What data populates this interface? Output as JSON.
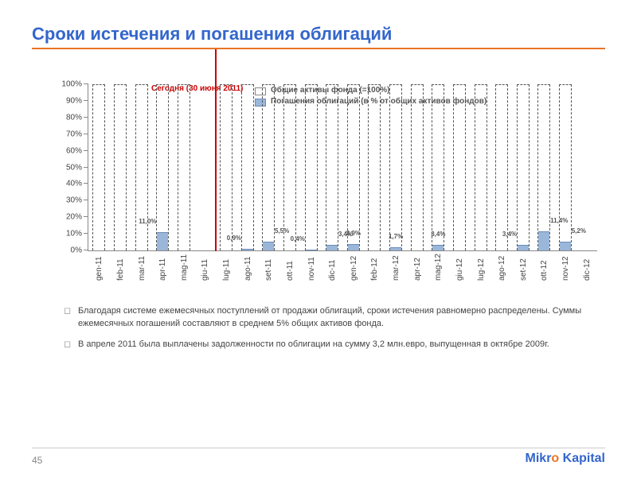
{
  "title": "Сроки истечения и погашения облигаций",
  "title_color": "#3366cc",
  "rule_color": "#e97424",
  "today_label": "Сегодня (30 июня 2011)",
  "today_color": "#cc0000",
  "legend": {
    "series1": {
      "label": "Общие активы фонда (=100%)",
      "color": "#ffffff",
      "border": "#888888"
    },
    "series2": {
      "label": "Погашения облигаций (в % от общих активов фондов)",
      "color": "#9ab7d9",
      "border": "#6a8db8"
    }
  },
  "chart": {
    "type": "bar",
    "ylim": [
      0,
      100
    ],
    "ytick_step": 10,
    "ylabels": [
      "0%",
      "10%",
      "20%",
      "30%",
      "40%",
      "50%",
      "60%",
      "70%",
      "80%",
      "90%",
      "100%"
    ],
    "bar_outline_dash": "dashed",
    "bar_fill_color": "#9ab7d9",
    "bar_fill_border": "#6a8db8",
    "background": "#ffffff",
    "grid_color": "#cccccc",
    "today_after_index": 5,
    "categories": [
      {
        "label": "gen-11",
        "value": null
      },
      {
        "label": "feb-11",
        "value": null
      },
      {
        "label": "mar-11",
        "value": null
      },
      {
        "label": "apr-11",
        "value": 11.0,
        "text": "11,0%",
        "lbl_side": "left"
      },
      {
        "label": "mag-11",
        "value": null
      },
      {
        "label": "giu-11",
        "value": null,
        "no_outline": true
      },
      {
        "label": "lug-11",
        "value": null
      },
      {
        "label": "ago-11",
        "value": 0.9,
        "text": "0,9%",
        "lbl_side": "left"
      },
      {
        "label": "set-11",
        "value": 5.5,
        "text": "5,5%",
        "lbl_side": "right"
      },
      {
        "label": "ott-11",
        "value": null
      },
      {
        "label": "nov-11",
        "value": 0.4,
        "text": "0,4%",
        "lbl_side": "left"
      },
      {
        "label": "dic-11",
        "value": 3.4,
        "text": "3,4%",
        "lbl_side": "right"
      },
      {
        "label": "gen-12",
        "value": 3.9,
        "text": "3,9%",
        "lbl_side": "center"
      },
      {
        "label": "feb-12",
        "value": null
      },
      {
        "label": "mar-12",
        "value": 1.7,
        "text": "1,7%",
        "lbl_side": "center"
      },
      {
        "label": "apr-12",
        "value": null
      },
      {
        "label": "mag-12",
        "value": 3.4,
        "text": "3,4%",
        "lbl_side": "center"
      },
      {
        "label": "giu-12",
        "value": null
      },
      {
        "label": "lug-12",
        "value": null
      },
      {
        "label": "ago-12",
        "value": null
      },
      {
        "label": "set-12",
        "value": 3.4,
        "text": "3,4%",
        "lbl_side": "left"
      },
      {
        "label": "ott-12",
        "value": 11.4,
        "text": "11,4%",
        "lbl_side": "right"
      },
      {
        "label": "nov-12",
        "value": 5.2,
        "text": "5,2%",
        "lbl_side": "right"
      },
      {
        "label": "dic-12",
        "value": null,
        "no_outline": true
      }
    ]
  },
  "bullets": [
    "Благодаря системе ежемесячных поступлений от продажи облигаций, сроки истечения равномерно распределены.  Суммы ежемесячных погашений составляют в среднем 5% общих активов фонда.",
    "В апреле 2011 была выплачены задолженности по облигации на сумму 3,2 млн.евро, выпущенная в октябре 2009г."
  ],
  "page_number": "45",
  "brand": {
    "part1": "Mikr",
    "color1": "#3366cc",
    "part2": "o",
    "color2": "#e97424",
    "part3": " Kapital",
    "color3": "#3366cc"
  }
}
